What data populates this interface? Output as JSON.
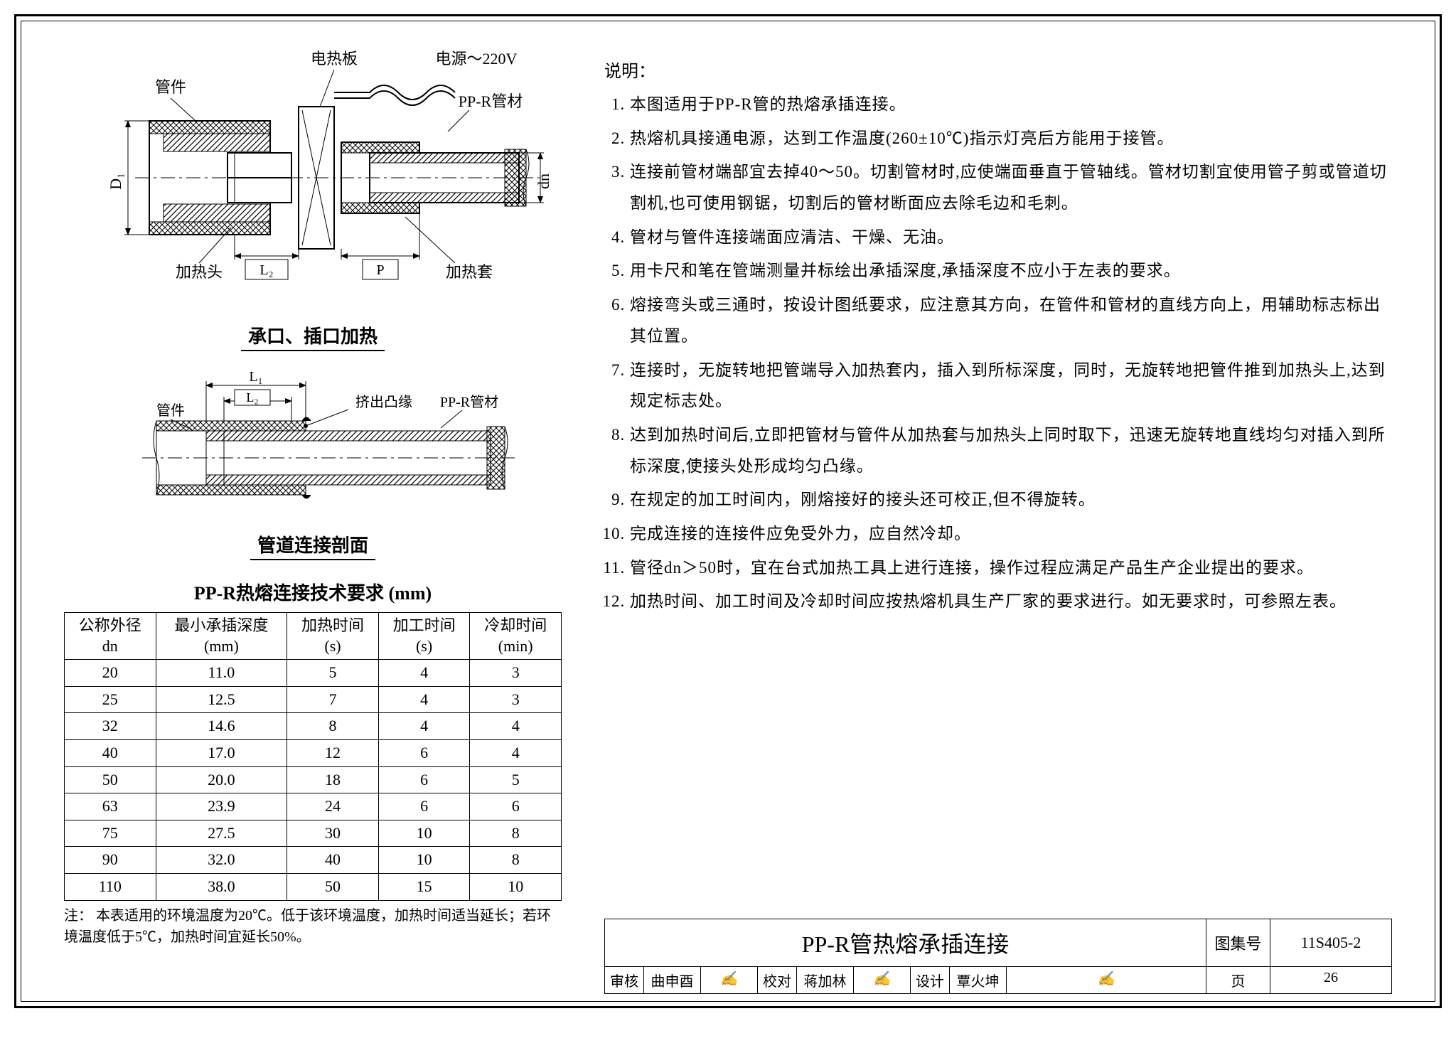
{
  "diagram1": {
    "caption": "承口、插口加热",
    "labels": {
      "dianreban": "电热板",
      "dianyuan": "电源～220V",
      "guanjian": "管件",
      "ppr_pipe": "PP-R管材",
      "jiaretou": "加热头",
      "jiaretao": "加热套",
      "D1": "D₁",
      "dn": "dn",
      "L2": "L₂",
      "P": "P"
    }
  },
  "diagram2": {
    "caption": "管道连接剖面",
    "labels": {
      "guanjian": "管件",
      "jichu": "挤出凸缘",
      "ppr_pipe": "PP-R管材",
      "L1": "L₁",
      "L2": "L₂"
    }
  },
  "table": {
    "title": "PP-R热熔连接技术要求  (mm)",
    "columns": [
      "公称外径\ndn",
      "最小承插深度\n(mm)",
      "加热时间\n(s)",
      "加工时间\n(s)",
      "冷却时间\n(min)"
    ],
    "rows": [
      [
        "20",
        "11.0",
        "5",
        "4",
        "3"
      ],
      [
        "25",
        "12.5",
        "7",
        "4",
        "3"
      ],
      [
        "32",
        "14.6",
        "8",
        "4",
        "4"
      ],
      [
        "40",
        "17.0",
        "12",
        "6",
        "4"
      ],
      [
        "50",
        "20.0",
        "18",
        "6",
        "5"
      ],
      [
        "63",
        "23.9",
        "24",
        "6",
        "6"
      ],
      [
        "75",
        "27.5",
        "30",
        "10",
        "8"
      ],
      [
        "90",
        "32.0",
        "40",
        "10",
        "8"
      ],
      [
        "110",
        "38.0",
        "50",
        "15",
        "10"
      ]
    ],
    "footnote": "注： 本表适用的环境温度为20℃。低于该环境温度，加热时间适当延长；若环境温度低于5℃，加热时间宜延长50%。"
  },
  "explain": {
    "title": "说明：",
    "items": [
      "本图适用于PP-R管的热熔承插连接。",
      "热熔机具接通电源，达到工作温度(260±10℃)指示灯亮后方能用于接管。",
      "连接前管材端部宜去掉40～50。切割管材时,应使端面垂直于管轴线。管材切割宜使用管子剪或管道切割机,也可使用钢锯，切割后的管材断面应去除毛边和毛刺。",
      "管材与管件连接端面应清洁、干燥、无油。",
      "用卡尺和笔在管端测量并标绘出承插深度,承插深度不应小于左表的要求。",
      "熔接弯头或三通时，按设计图纸要求，应注意其方向，在管件和管材的直线方向上，用辅助标志标出其位置。",
      "连接时，无旋转地把管端导入加热套内，插入到所标深度，同时，无旋转地把管件推到加热头上,达到规定标志处。",
      "达到加热时间后,立即把管材与管件从加热套与加热头上同时取下，迅速无旋转地直线均匀对插入到所标深度,使接头处形成均匀凸缘。",
      "在规定的加工时间内，刚熔接好的接头还可校正,但不得旋转。",
      "完成连接的连接件应免受外力，应自然冷却。",
      "管径dn＞50时，宜在台式加热工具上进行连接，操作过程应满足产品生产企业提出的要求。",
      "加热时间、加工时间及冷却时间应按热熔机具生产厂家的要求进行。如无要求时，可参照左表。"
    ]
  },
  "titleblock": {
    "title": "PP-R管热熔承插连接",
    "tuji_label": "图集号",
    "tuji_val": "11S405-2",
    "shenhe_label": "审核",
    "shenhe_name": "曲申酉",
    "jiaodui_label": "校对",
    "jiaodui_name": "蒋加林",
    "sheji_label": "设计",
    "sheji_name": "覃火坤",
    "ye_label": "页",
    "ye_val": "26"
  },
  "style": {
    "font_main": 23,
    "border_color": "#000000",
    "bg": "#ffffff"
  }
}
